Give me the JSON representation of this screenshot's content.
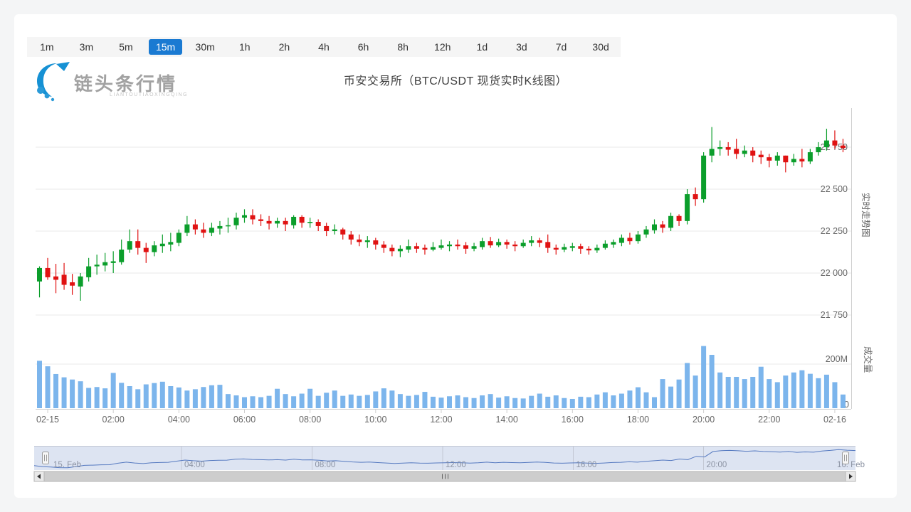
{
  "header": {
    "logo_text": "链头条行情",
    "logo_subtext": "LIANTOUTIAOXINGQING",
    "title": "币安交易所（BTC/USDT 现货实时K线图）"
  },
  "timeframe_bar": {
    "options": [
      "1m",
      "3m",
      "5m",
      "15m",
      "30m",
      "1h",
      "2h",
      "4h",
      "6h",
      "8h",
      "12h",
      "1d",
      "3d",
      "7d",
      "30d"
    ],
    "selected": "15m",
    "selected_color": "#1a7ad2"
  },
  "side_labels": {
    "price_pane": "实时走势图",
    "volume_pane": "成交量"
  },
  "colors": {
    "up": "#0b9e2b",
    "down": "#e01212",
    "volume": "#7cb5ec",
    "grid": "#e8e8e8",
    "axis_line": "#cfcfcf",
    "axis_label": "#666666",
    "navigator_mask": "rgba(102,133,194,0.22)",
    "navigator_line": "#5579c0",
    "navigator_grid": "#c3c8d4",
    "navigator_label": "#8c93a3",
    "scrollbar_track": "#dcdcdc",
    "scrollbar_thumb": "#cdcdcd",
    "scrollbar_border": "#b5b5b5"
  },
  "chart_data": {
    "type": "candlestick+volume",
    "title": "币安交易所（BTC/USDT 现货实时K线图）",
    "symbol": "BTC/USDT",
    "interval": "15m",
    "price_axis": {
      "tick_labels": [
        "22 750",
        "22 500",
        "22 250",
        "22 000",
        "21 750"
      ],
      "tick_values": [
        22750,
        22500,
        22250,
        22000,
        21750
      ]
    },
    "volume_axis": {
      "tick_labels": [
        "200M",
        "0"
      ],
      "tick_values": [
        200,
        0
      ],
      "unit": "M"
    },
    "x_axis": {
      "labels": [
        "02-15",
        "02:00",
        "04:00",
        "06:00",
        "08:00",
        "10:00",
        "12:00",
        "14:00",
        "16:00",
        "18:00",
        "20:00",
        "22:00",
        "02-16"
      ],
      "label_candle_indices": [
        1,
        9,
        17,
        25,
        33,
        41,
        49,
        57,
        65,
        73,
        81,
        89,
        97
      ]
    },
    "navigator": {
      "labels": [
        "15. Feb",
        "04:00",
        "08:00",
        "12:00",
        "16:00",
        "20:00",
        "16. Feb"
      ]
    },
    "candles_ohlc": [
      [
        21950,
        22040,
        21855,
        22030
      ],
      [
        22030,
        22090,
        21960,
        21975
      ],
      [
        21980,
        22055,
        21880,
        21960
      ],
      [
        21990,
        22060,
        21900,
        21930
      ],
      [
        21945,
        21995,
        21870,
        21925
      ],
      [
        21920,
        22000,
        21835,
        21980
      ],
      [
        21975,
        22090,
        21950,
        22040
      ],
      [
        22040,
        22110,
        21990,
        22050
      ],
      [
        22045,
        22120,
        22010,
        22065
      ],
      [
        22060,
        22130,
        22000,
        22070
      ],
      [
        22065,
        22200,
        22050,
        22140
      ],
      [
        22140,
        22260,
        22120,
        22190
      ],
      [
        22190,
        22260,
        22110,
        22150
      ],
      [
        22150,
        22180,
        22060,
        22125
      ],
      [
        22125,
        22190,
        22100,
        22165
      ],
      [
        22160,
        22230,
        22120,
        22175
      ],
      [
        22170,
        22240,
        22130,
        22185
      ],
      [
        22180,
        22260,
        22160,
        22240
      ],
      [
        22240,
        22340,
        22220,
        22290
      ],
      [
        22290,
        22320,
        22230,
        22260
      ],
      [
        22260,
        22300,
        22210,
        22240
      ],
      [
        22240,
        22300,
        22220,
        22270
      ],
      [
        22265,
        22310,
        22230,
        22280
      ],
      [
        22280,
        22330,
        22240,
        22285
      ],
      [
        22285,
        22360,
        22260,
        22330
      ],
      [
        22330,
        22380,
        22300,
        22345
      ],
      [
        22345,
        22380,
        22290,
        22320
      ],
      [
        22320,
        22350,
        22280,
        22310
      ],
      [
        22310,
        22340,
        22260,
        22295
      ],
      [
        22295,
        22330,
        22270,
        22310
      ],
      [
        22310,
        22330,
        22250,
        22290
      ],
      [
        22285,
        22345,
        22265,
        22335
      ],
      [
        22335,
        22345,
        22270,
        22300
      ],
      [
        22300,
        22330,
        22270,
        22305
      ],
      [
        22305,
        22320,
        22250,
        22280
      ],
      [
        22280,
        22300,
        22220,
        22250
      ],
      [
        22250,
        22290,
        22230,
        22260
      ],
      [
        22260,
        22270,
        22200,
        22230
      ],
      [
        22230,
        22250,
        22170,
        22200
      ],
      [
        22200,
        22230,
        22160,
        22185
      ],
      [
        22185,
        22220,
        22150,
        22195
      ],
      [
        22195,
        22210,
        22140,
        22170
      ],
      [
        22170,
        22190,
        22120,
        22150
      ],
      [
        22150,
        22170,
        22100,
        22130
      ],
      [
        22130,
        22165,
        22095,
        22145
      ],
      [
        22140,
        22200,
        22120,
        22160
      ],
      [
        22160,
        22180,
        22120,
        22145
      ],
      [
        22150,
        22170,
        22110,
        22140
      ],
      [
        22140,
        22185,
        22130,
        22155
      ],
      [
        22150,
        22200,
        22140,
        22165
      ],
      [
        22160,
        22190,
        22130,
        22170
      ],
      [
        22170,
        22200,
        22140,
        22160
      ],
      [
        22165,
        22185,
        22115,
        22145
      ],
      [
        22145,
        22180,
        22130,
        22160
      ],
      [
        22155,
        22210,
        22140,
        22190
      ],
      [
        22190,
        22215,
        22150,
        22165
      ],
      [
        22165,
        22205,
        22155,
        22185
      ],
      [
        22185,
        22200,
        22145,
        22170
      ],
      [
        22170,
        22190,
        22130,
        22160
      ],
      [
        22160,
        22200,
        22150,
        22180
      ],
      [
        22180,
        22220,
        22160,
        22195
      ],
      [
        22195,
        22210,
        22155,
        22180
      ],
      [
        22185,
        22230,
        22120,
        22150
      ],
      [
        22150,
        22170,
        22110,
        22140
      ],
      [
        22140,
        22175,
        22125,
        22155
      ],
      [
        22150,
        22180,
        22130,
        22160
      ],
      [
        22160,
        22175,
        22115,
        22145
      ],
      [
        22145,
        22160,
        22110,
        22135
      ],
      [
        22135,
        22170,
        22120,
        22150
      ],
      [
        22150,
        22195,
        22140,
        22175
      ],
      [
        22170,
        22200,
        22150,
        22185
      ],
      [
        22180,
        22230,
        22160,
        22210
      ],
      [
        22210,
        22240,
        22170,
        22190
      ],
      [
        22190,
        22250,
        22175,
        22230
      ],
      [
        22230,
        22280,
        22210,
        22260
      ],
      [
        22255,
        22320,
        22235,
        22290
      ],
      [
        22290,
        22310,
        22240,
        22270
      ],
      [
        22270,
        22360,
        22250,
        22340
      ],
      [
        22340,
        22350,
        22280,
        22310
      ],
      [
        22310,
        22500,
        22290,
        22470
      ],
      [
        22470,
        22510,
        22400,
        22440
      ],
      [
        22440,
        22720,
        22420,
        22700
      ],
      [
        22700,
        22870,
        22660,
        22740
      ],
      [
        22740,
        22790,
        22700,
        22750
      ],
      [
        22750,
        22780,
        22700,
        22735
      ],
      [
        22740,
        22800,
        22680,
        22710
      ],
      [
        22710,
        22760,
        22690,
        22730
      ],
      [
        22730,
        22750,
        22660,
        22700
      ],
      [
        22705,
        22730,
        22650,
        22690
      ],
      [
        22690,
        22710,
        22630,
        22670
      ],
      [
        22670,
        22720,
        22640,
        22700
      ],
      [
        22700,
        22700,
        22600,
        22660
      ],
      [
        22660,
        22710,
        22640,
        22680
      ],
      [
        22680,
        22740,
        22630,
        22665
      ],
      [
        22665,
        22740,
        22650,
        22720
      ],
      [
        22720,
        22780,
        22700,
        22750
      ],
      [
        22750,
        22860,
        22730,
        22790
      ],
      [
        22790,
        22850,
        22740,
        22760
      ],
      [
        22760,
        22800,
        22720,
        22745
      ]
    ],
    "volumes_m": [
      215,
      190,
      155,
      140,
      130,
      122,
      92,
      96,
      90,
      160,
      115,
      100,
      86,
      108,
      114,
      120,
      100,
      94,
      80,
      86,
      96,
      104,
      106,
      64,
      58,
      50,
      54,
      50,
      56,
      88,
      64,
      54,
      66,
      88,
      56,
      70,
      80,
      56,
      62,
      56,
      60,
      76,
      90,
      80,
      64,
      56,
      60,
      74,
      52,
      48,
      54,
      58,
      50,
      46,
      58,
      64,
      48,
      54,
      46,
      44,
      56,
      66,
      52,
      58,
      46,
      42,
      52,
      50,
      62,
      72,
      58,
      66,
      80,
      95,
      72,
      50,
      132,
      98,
      130,
      205,
      148,
      282,
      242,
      162,
      142,
      142,
      132,
      142,
      188,
      132,
      118,
      148,
      162,
      172,
      156,
      136,
      152,
      118,
      62
    ]
  }
}
